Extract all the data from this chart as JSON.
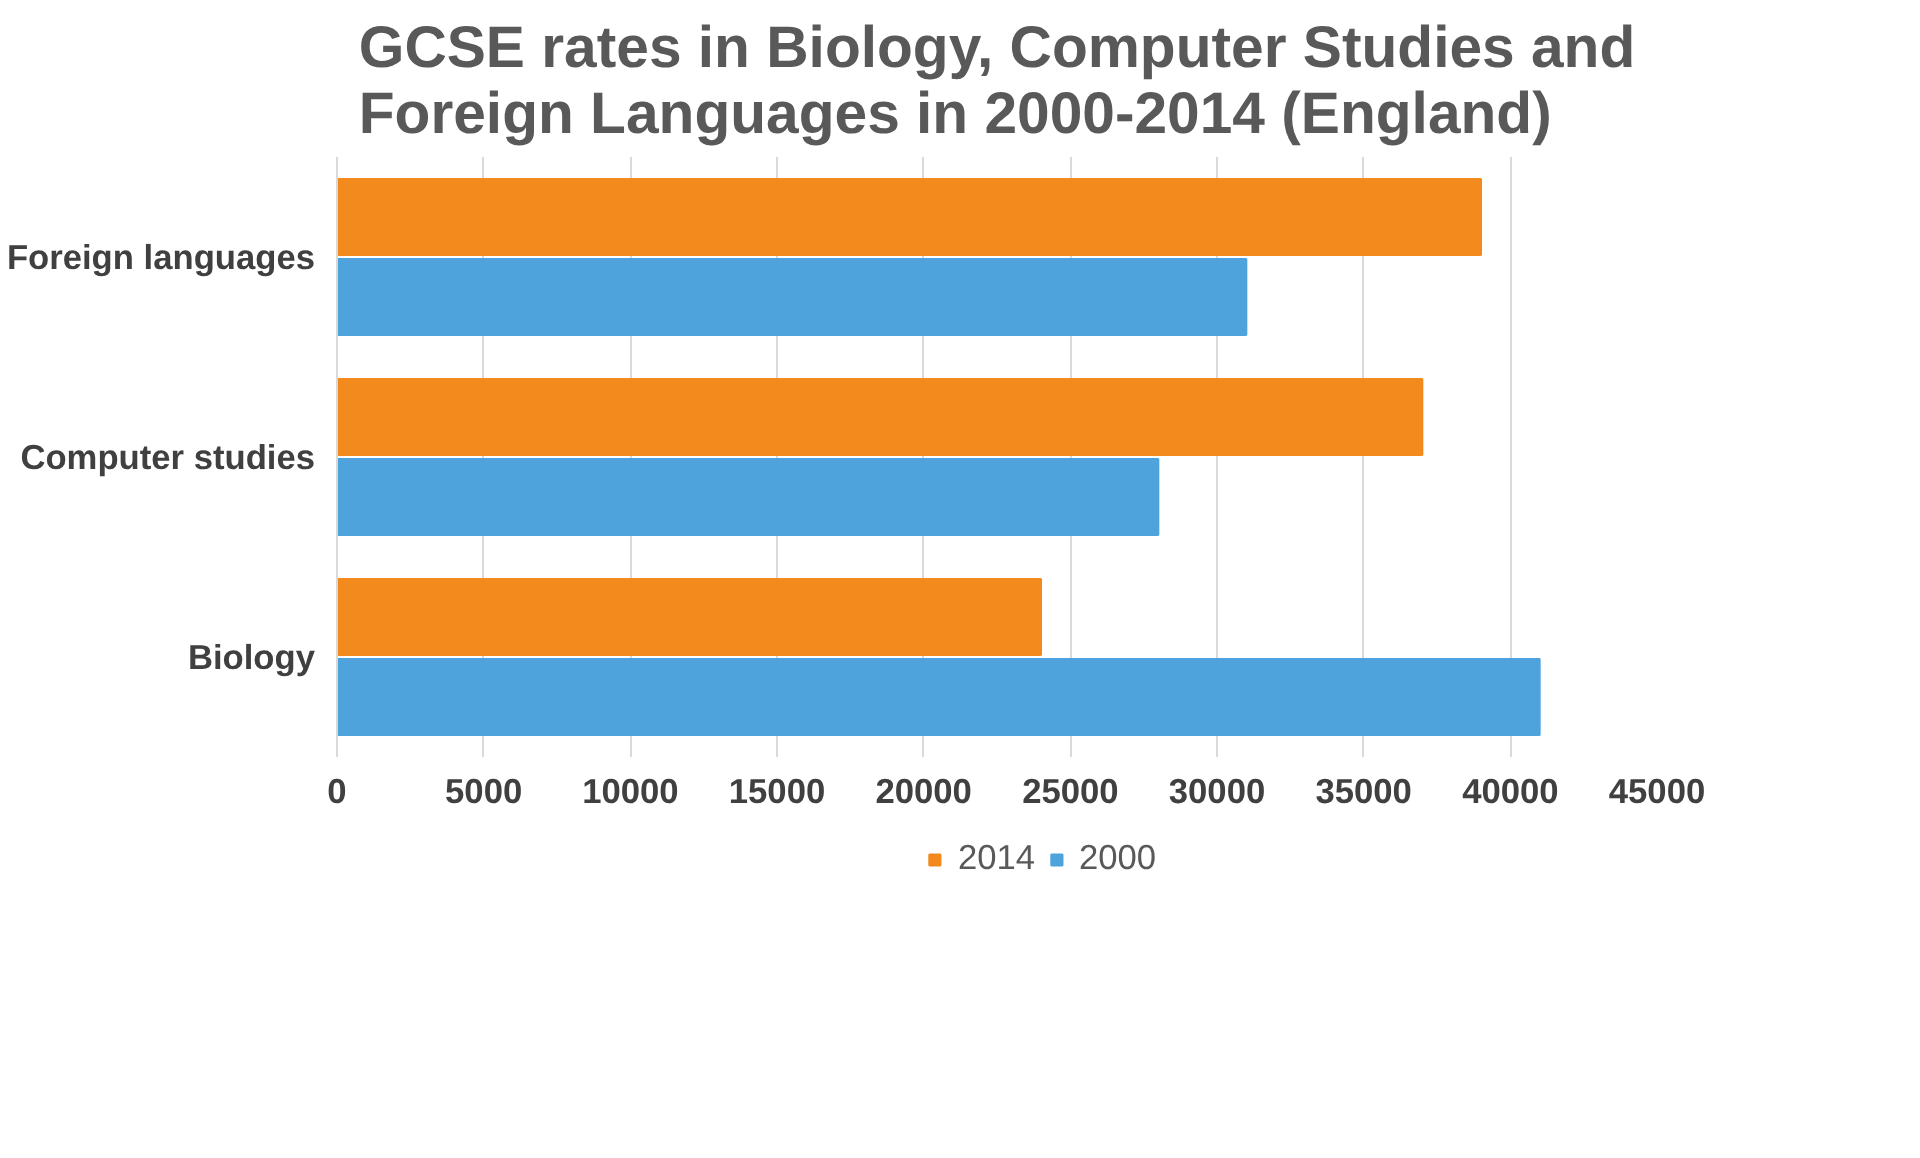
{
  "chart_data": {
    "type": "bar",
    "orientation": "horizontal",
    "title": "GCSE rates in Biology, Computer Studies and Foreign Languages in 2000-2014 (England)",
    "categories": [
      "Foreign languages",
      "Computer studies",
      "Biology"
    ],
    "series": [
      {
        "name": "2014",
        "color": "#f28a1e",
        "values": [
          39000,
          37000,
          24000
        ]
      },
      {
        "name": "2000",
        "color": "#4ea3dc",
        "values": [
          31000,
          28000,
          41000
        ]
      }
    ],
    "xlim": [
      0,
      45000
    ],
    "xticks": [
      0,
      5000,
      10000,
      15000,
      20000,
      25000,
      30000,
      35000,
      40000,
      45000
    ],
    "grid": "x",
    "legend": "bottom"
  }
}
